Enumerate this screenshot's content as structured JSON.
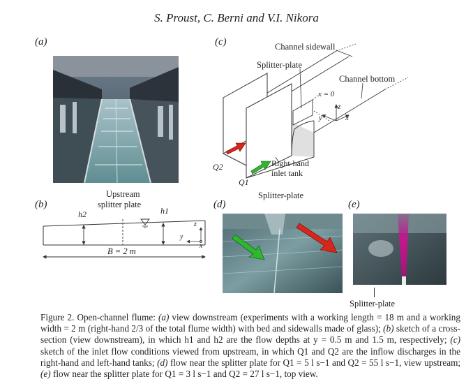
{
  "header": {
    "authors": "S. Proust, C. Berni and V.I. Nikora"
  },
  "panels": {
    "a": {
      "label": "(a)"
    },
    "b": {
      "label": "(b)",
      "upstream_label_1": "Upstream",
      "upstream_label_2": "splitter plate",
      "h2": "h2",
      "h1": "h1",
      "z": "z",
      "y": "y",
      "x": "x",
      "width_label": "B = 2 m"
    },
    "c": {
      "label": "(c)",
      "channel_sidewall": "Channel sidewall",
      "splitter_plate": "Splitter-plate",
      "channel_bottom": "Channel bottom",
      "x_zero": "x = 0",
      "z": "z",
      "y": "y",
      "x": "x",
      "q2": "Q2",
      "q1": "Q1",
      "inlet_tank_1": "Right-hand",
      "inlet_tank_2": "inlet tank"
    },
    "d": {
      "label": "(d)",
      "splitter_plate": "Splitter-plate"
    },
    "e": {
      "label": "(e)",
      "splitter_plate": "Splitter-plate"
    }
  },
  "caption": {
    "p1": "Figure 2. Open-channel flume: ",
    "a_lab": "(a)",
    "p2": " view downstream (experiments with a working length = 18 m and a working width = 2 m (right-hand 2/3 of the total flume width) with bed and sidewalls made of glass); ",
    "b_lab": "(b)",
    "p3": " sketch of a cross-section (view downstream), in which h1 and h2 are the flow depths at y = 0.5 m and 1.5 m, respectively; ",
    "c_lab": "(c)",
    "p4": " sketch of the inlet flow conditions viewed from upstream, in which Q1 and Q2 are the inflow discharges in the right-hand and left-hand tanks; ",
    "d_lab": "(d)",
    "p5": " flow near the splitter plate for Q1 = 5 l s−1 and Q2 = 55 l s−1, view upstream; ",
    "e_lab": "(e)",
    "p6": " flow near the splitter plate for Q1 = 3 l s−1 and Q2 = 27 l s−1, top view."
  },
  "colors": {
    "arrow_red": "#d9261c",
    "arrow_green": "#2eb82e",
    "dye_magenta": "#c2188f"
  }
}
